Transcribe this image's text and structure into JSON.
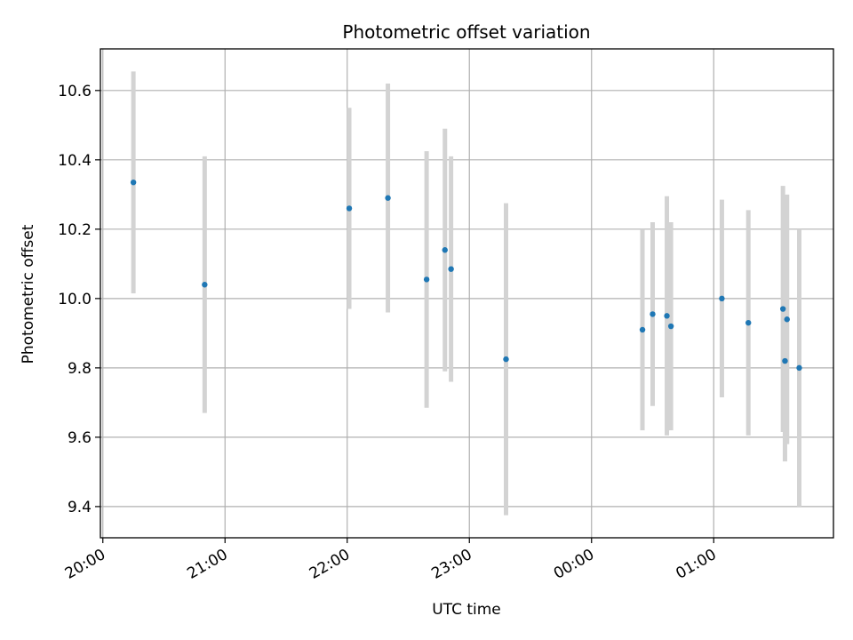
{
  "chart_data": {
    "type": "scatter",
    "title": "Photometric offset variation",
    "xlabel": "UTC time",
    "ylabel": "Photometric offset",
    "x_tick_labels": [
      "20:00",
      "21:00",
      "22:00",
      "23:00",
      "00:00",
      "01:00"
    ],
    "x_tick_hours": [
      0,
      1,
      2,
      3,
      4,
      5
    ],
    "x_axis_start": "20:00",
    "xlim_hours": [
      -0.02,
      5.98
    ],
    "ylim": [
      9.31,
      10.72
    ],
    "y_ticks": [
      9.4,
      9.6,
      9.8,
      10.0,
      10.2,
      10.4,
      10.6
    ],
    "y_tick_labels": [
      "9.4",
      "9.6",
      "9.8",
      "10.0",
      "10.2",
      "10.4",
      "10.6"
    ],
    "grid": true,
    "colors": {
      "point": "#1f77b4",
      "errorbar": "#d3d3d3",
      "grid": "#b0b0b0"
    },
    "series": [
      {
        "points": [
          {
            "t": "20:15",
            "y": 10.335,
            "err": 0.32
          },
          {
            "t": "20:50",
            "y": 10.04,
            "err": 0.37
          },
          {
            "t": "22:01",
            "y": 10.26,
            "err": 0.29
          },
          {
            "t": "22:20",
            "y": 10.29,
            "err": 0.33
          },
          {
            "t": "22:39",
            "y": 10.055,
            "err": 0.37
          },
          {
            "t": "22:48",
            "y": 10.14,
            "err": 0.35
          },
          {
            "t": "22:51",
            "y": 10.085,
            "err": 0.325
          },
          {
            "t": "23:18",
            "y": 9.825,
            "err": 0.45
          },
          {
            "t": "00:25",
            "y": 9.91,
            "err": 0.29
          },
          {
            "t": "00:30",
            "y": 9.955,
            "err": 0.265
          },
          {
            "t": "00:37",
            "y": 9.95,
            "err": 0.345
          },
          {
            "t": "00:39",
            "y": 9.92,
            "err": 0.3
          },
          {
            "t": "01:04",
            "y": 10.0,
            "err": 0.285
          },
          {
            "t": "01:17",
            "y": 9.93,
            "err": 0.325
          },
          {
            "t": "01:34",
            "y": 9.97,
            "err": 0.355
          },
          {
            "t": "01:35",
            "y": 9.82,
            "err": 0.29
          },
          {
            "t": "01:36",
            "y": 9.94,
            "err": 0.36
          },
          {
            "t": "01:42",
            "y": 9.8,
            "err": 0.4
          }
        ]
      }
    ]
  }
}
